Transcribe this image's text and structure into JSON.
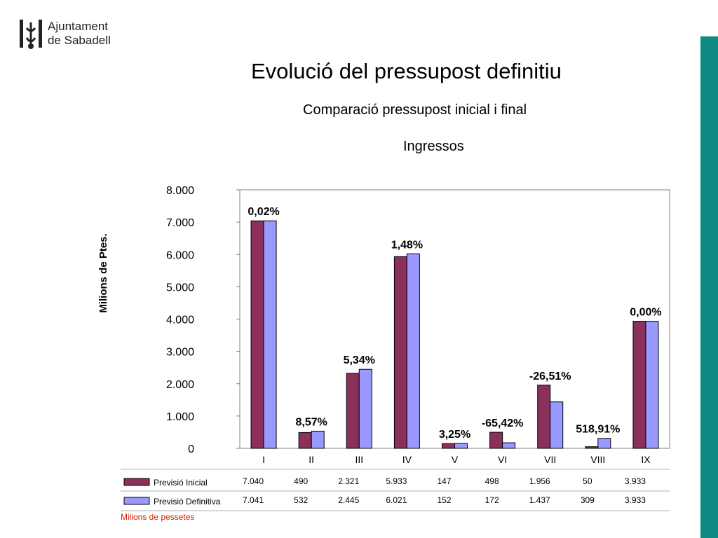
{
  "header": {
    "org_line1": "Ajuntament",
    "org_line2": "de Sabadell",
    "title": "Evolució del pressupost definitiu",
    "subtitle": "Comparació pressupost inicial i final",
    "section": "Ingressos",
    "units_note": "Milions de pessetes"
  },
  "colors": {
    "inicial": "#8b2f5b",
    "definitiva": "#9999ff",
    "accent": "#0e8a82",
    "units_note": "#cc2200"
  },
  "chart_data": {
    "type": "bar",
    "ylabel": "Milions de Ptes.",
    "ylim": [
      0,
      8000
    ],
    "yticks": [
      "0",
      "1.000",
      "2.000",
      "3.000",
      "4.000",
      "5.000",
      "6.000",
      "7.000",
      "8.000"
    ],
    "categories": [
      "I",
      "II",
      "III",
      "IV",
      "V",
      "VI",
      "VII",
      "VIII",
      "IX"
    ],
    "series": [
      {
        "name": "Previsió Inicial",
        "values": [
          7040,
          490,
          2321,
          5933,
          147,
          498,
          1956,
          50,
          3933
        ],
        "labels": [
          "7.040",
          "490",
          "2.321",
          "5.933",
          "147",
          "498",
          "1.956",
          "50",
          "3.933"
        ]
      },
      {
        "name": "Previsió Definitiva",
        "values": [
          7041,
          532,
          2445,
          6021,
          152,
          172,
          1437,
          309,
          3933
        ],
        "labels": [
          "7.041",
          "532",
          "2.445",
          "6.021",
          "152",
          "172",
          "1.437",
          "309",
          "3.933"
        ]
      }
    ],
    "annotations": [
      "0,02%",
      "8,57%",
      "5,34%",
      "1,48%",
      "3,25%",
      "-65,42%",
      "-26,51%",
      "518,91%",
      "0,00%"
    ],
    "legend": "data-table-below",
    "grid": false
  }
}
